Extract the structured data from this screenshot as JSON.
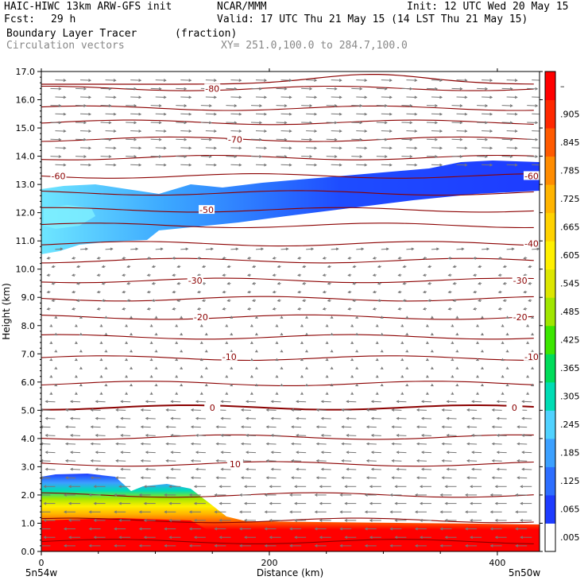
{
  "header": {
    "model": "HAIC-HIWC 13km ARW-GFS init",
    "org": "NCAR/MMM",
    "init": "Init: 12 UTC Wed 20 May 15",
    "fcst_label": "Fcst:",
    "fcst_value": "29 h",
    "valid": "Valid: 17 UTC Thu 21 May 15 (14 LST Thu 21 May 15)",
    "field": "Boundary Layer Tracer",
    "field_units": "(fraction)",
    "vectors": "Circulation vectors",
    "xy": "XY= 251.0,100.0 to 284.7,100.0"
  },
  "chart_data": {
    "type": "heatmap",
    "ylabel": "Height (km)",
    "xlabel": "Distance (km)",
    "xlim": [
      0,
      437
    ],
    "ylim": [
      0,
      17
    ],
    "x_ticks": [
      "0",
      "200",
      "400"
    ],
    "x_tick_values": [
      0,
      200,
      400
    ],
    "x_end_labels": [
      "5n54w",
      "5n50w"
    ],
    "y_ticks": [
      "0.0",
      "1.0",
      "2.0",
      "3.0",
      "4.0",
      "5.0",
      "6.0",
      "7.0",
      "8.0",
      "9.0",
      "10.0",
      "11.0",
      "12.0",
      "13.0",
      "14.0",
      "15.0",
      "16.0",
      "17.0"
    ],
    "colorbar": {
      "labels": [
        ".005",
        ".065",
        ".125",
        ".185",
        ".245",
        ".305",
        ".365",
        ".425",
        ".485",
        ".545",
        ".605",
        ".665",
        ".725",
        ".785",
        ".845",
        ".905",
        "–"
      ],
      "colors": [
        "#ffffff",
        "#1e3cff",
        "#2d6eff",
        "#3ca0ff",
        "#50d2ff",
        "#00dcb4",
        "#00dc5a",
        "#3ce600",
        "#a0e600",
        "#dce600",
        "#fff000",
        "#ffd200",
        "#ffb400",
        "#ff8c00",
        "#ff5a00",
        "#ff2800",
        "#ff0000"
      ]
    },
    "isotherm_labels": [
      {
        "text": "-80",
        "x": 150,
        "y": 16.4
      },
      {
        "text": "-70",
        "x": 170,
        "y": 14.6
      },
      {
        "text": "-60",
        "x": 15,
        "y": 13.3
      },
      {
        "text": "-60",
        "x": 430,
        "y": 13.3
      },
      {
        "text": "-50",
        "x": 145,
        "y": 12.1
      },
      {
        "text": "-40",
        "x": 430,
        "y": 10.9
      },
      {
        "text": "-30",
        "x": 135,
        "y": 9.6
      },
      {
        "text": "-30",
        "x": 420,
        "y": 9.6
      },
      {
        "text": "-20",
        "x": 140,
        "y": 8.3
      },
      {
        "text": "-20",
        "x": 420,
        "y": 8.3
      },
      {
        "text": "-10",
        "x": 165,
        "y": 6.9
      },
      {
        "text": "-10",
        "x": 430,
        "y": 6.9
      },
      {
        "text": "0",
        "x": 150,
        "y": 5.1
      },
      {
        "text": "0",
        "x": 415,
        "y": 5.1
      },
      {
        "text": "10",
        "x": 170,
        "y": 3.1
      }
    ]
  }
}
